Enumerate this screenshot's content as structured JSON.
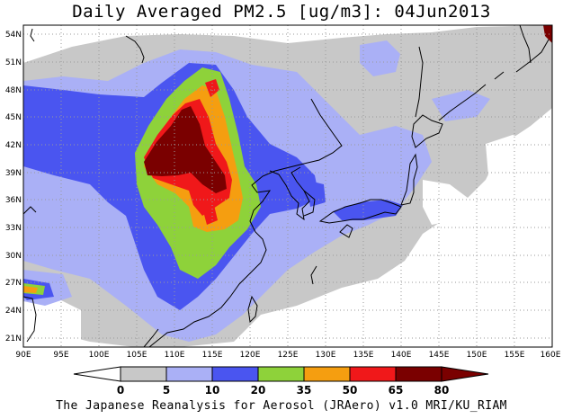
{
  "title": "Daily Averaged PM2.5 [ug/m3]: 04Jun2013",
  "credit": "The Japanese Reanalysis for Aerosol (JRAero) v1.0 MRI/KU_RIAM",
  "map": {
    "lon_range": [
      90,
      160
    ],
    "lat_range": [
      20,
      55
    ],
    "lon_ticks": [
      {
        "value": 90,
        "label": "90E"
      },
      {
        "value": 95,
        "label": "95E"
      },
      {
        "value": 100,
        "label": "100E"
      },
      {
        "value": 105,
        "label": "105E"
      },
      {
        "value": 110,
        "label": "110E"
      },
      {
        "value": 115,
        "label": "115E"
      },
      {
        "value": 120,
        "label": "120E"
      },
      {
        "value": 125,
        "label": "125E"
      },
      {
        "value": 130,
        "label": "130E"
      },
      {
        "value": 135,
        "label": "135E"
      },
      {
        "value": 140,
        "label": "140E"
      },
      {
        "value": 145,
        "label": "145E"
      },
      {
        "value": 150,
        "label": "150E"
      },
      {
        "value": 155,
        "label": "155E"
      },
      {
        "value": 160,
        "label": "160E"
      }
    ],
    "lat_ticks": [
      {
        "value": 21,
        "label": "21N"
      },
      {
        "value": 24,
        "label": "24N"
      },
      {
        "value": 27,
        "label": "27N"
      },
      {
        "value": 30,
        "label": "30N"
      },
      {
        "value": 33,
        "label": "33N"
      },
      {
        "value": 36,
        "label": "36N"
      },
      {
        "value": 39,
        "label": "39N"
      },
      {
        "value": 42,
        "label": "42N"
      },
      {
        "value": 45,
        "label": "45N"
      },
      {
        "value": 48,
        "label": "48N"
      },
      {
        "value": 51,
        "label": "51N"
      },
      {
        "value": 54,
        "label": "54N"
      }
    ],
    "gridlines": true
  },
  "colorbar": {
    "levels": [
      "0",
      "5",
      "10",
      "20",
      "35",
      "50",
      "65",
      "80"
    ],
    "colors": [
      "#ffffff",
      "#c8c8c8",
      "#aab0f6",
      "#4a55f0",
      "#8ed23a",
      "#f59e10",
      "#f0181a",
      "#7a0000"
    ]
  }
}
